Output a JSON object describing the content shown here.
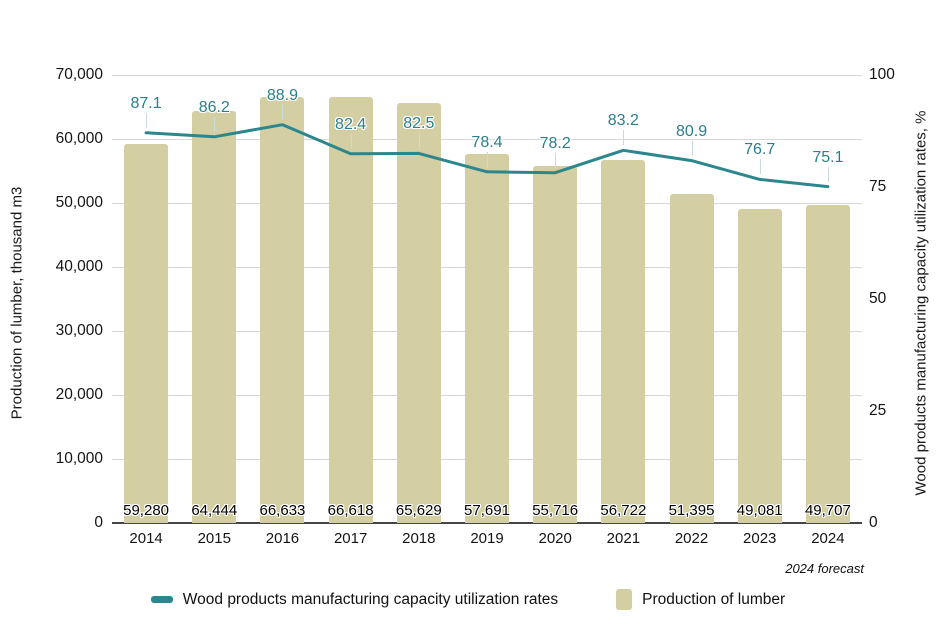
{
  "chart_data": {
    "type": "bar+line",
    "categories": [
      "2014",
      "2015",
      "2016",
      "2017",
      "2018",
      "2019",
      "2020",
      "2021",
      "2022",
      "2023",
      "2024"
    ],
    "series": [
      {
        "name": "Production of lumber",
        "type": "bar",
        "values": [
          59280,
          64444,
          66633,
          66618,
          65629,
          57691,
          55716,
          56722,
          51395,
          49081,
          49707
        ],
        "value_labels": [
          "59,280",
          "64,444",
          "66,633",
          "66,618",
          "65,629",
          "57,691",
          "55,716",
          "56,722",
          "51,395",
          "49,081",
          "49,707"
        ],
        "color": "#d3cfa2"
      },
      {
        "name": "Wood products manufacturing capacity utilization rates",
        "type": "line",
        "values": [
          87.1,
          86.2,
          88.9,
          82.4,
          82.5,
          78.4,
          78.2,
          83.2,
          80.9,
          76.7,
          75.1
        ],
        "value_labels": [
          "87.1",
          "86.2",
          "88.9",
          "82.4",
          "82.5",
          "78.4",
          "78.2",
          "83.2",
          "80.9",
          "76.7",
          "75.1"
        ],
        "color": "#2b878d",
        "label_color": "#2b7f8d",
        "leader_color": "#c9dcdd"
      }
    ],
    "left_axis": {
      "title": "Production of lumber, thousand m3",
      "min": 0,
      "max": 70000,
      "tick_step": 10000,
      "tick_labels": [
        "0",
        "10,000",
        "20,000",
        "30,000",
        "40,000",
        "50,000",
        "60,000",
        "70,000"
      ]
    },
    "right_axis": {
      "title": "Wood products manufacturing capacity utilization rates, %",
      "min": 0,
      "max": 100,
      "ticks": [
        0,
        25,
        50,
        75,
        100
      ],
      "tick_labels": [
        "0",
        "25",
        "50",
        "75",
        "100"
      ]
    },
    "note": "2024 forecast",
    "legend": [
      {
        "label": "Wood products manufacturing capacity utilization rates",
        "marker": "line-dash",
        "color": "#2b878d"
      },
      {
        "label": "Production of lumber",
        "marker": "bar-swatch",
        "color": "#d3cfa2"
      }
    ],
    "grid": {
      "color": "#d8d8d8",
      "baseline_color": "#454545"
    },
    "background": "#ffffff"
  }
}
